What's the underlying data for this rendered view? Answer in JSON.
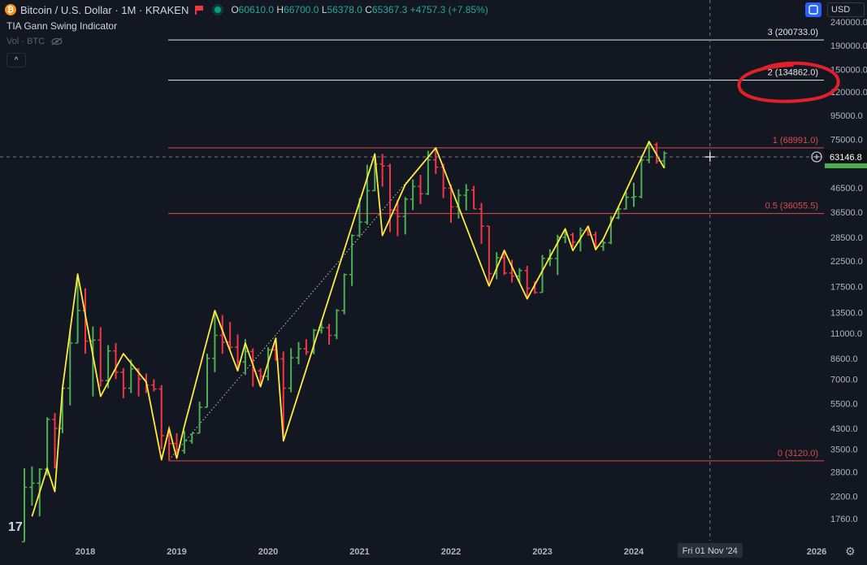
{
  "header": {
    "symbol_title": "Bitcoin / U.S. Dollar · 1M · KRAKEN",
    "open_key": "O",
    "open": "60610.0",
    "high_key": "H",
    "high": "66700.0",
    "low_key": "L",
    "low": "56378.0",
    "close_key": "C",
    "close": "65367.3",
    "change": "+4757.3 (+7.85%)"
  },
  "indicator_name": "TIA Gann Swing Indicator",
  "volume_label": "Vol · BTC",
  "currency": "USD",
  "colors": {
    "background": "#131722",
    "up": "#4caf50",
    "down": "#f23645",
    "swing": "#ffeb3b",
    "marker": "#e0202a"
  },
  "chart_data": {
    "type": "line",
    "price_axis": "log",
    "y_ticks": [
      "240000.0",
      "190000.0",
      "150000.0",
      "120000.0",
      "95000.0",
      "75000.0",
      "46500.0",
      "36500.0",
      "28500.0",
      "22500.0",
      "17500.0",
      "13500.0",
      "11000.0",
      "8600.0",
      "7000.0",
      "5500.0",
      "4300.0",
      "3500.0",
      "2800.0",
      "2200.0",
      "1760.0"
    ],
    "x_ticks": [
      "2018",
      "2019",
      "2020",
      "2021",
      "2022",
      "2023",
      "2024",
      "2026"
    ],
    "current_price_label": "63146.8",
    "crosshair_date_label": "Fri 01 Nov '24",
    "levels": [
      {
        "label": "3 (200733.0)",
        "value": 200733.0,
        "color": "#e6e6e6"
      },
      {
        "label": "2 (134862.0)",
        "value": 134862.0,
        "color": "#e6e6e6"
      },
      {
        "label": "1 (68991.0)",
        "value": 68991.0,
        "color": "#d94c4c"
      },
      {
        "label": "0.5 (36055.5)",
        "value": 36055.5,
        "color": "#d94c4c"
      },
      {
        "label": "0 (3120.0)",
        "value": 3120.0,
        "color": "#d94c4c"
      }
    ],
    "swing": {
      "name": "",
      "x": [
        "2017-06",
        "2017-08",
        "2017-09",
        "2017-10",
        "2017-12",
        "2018-03",
        "2018-06",
        "2018-09",
        "2018-11",
        "2018-12",
        "2019-01",
        "2019-02",
        "2019-06",
        "2019-09",
        "2019-10",
        "2019-12",
        "2020-02",
        "2020-03",
        "2021-03",
        "2021-04",
        "2021-07",
        "2021-11",
        "2022-06",
        "2022-08",
        "2022-11",
        "2023-04",
        "2023-05",
        "2023-07",
        "2023-08",
        "2023-09",
        "2024-03",
        "2024-05"
      ],
      "y": [
        1800,
        2900,
        2300,
        6400,
        19800,
        5900,
        9000,
        6800,
        3150,
        4300,
        3200,
        4400,
        13800,
        7600,
        10000,
        6500,
        10500,
        3800,
        65000,
        29000,
        48000,
        69000,
        17600,
        25000,
        15500,
        31000,
        25000,
        31800,
        25200,
        28000,
        73500,
        56500
      ]
    },
    "candles": [
      [
        "2017-05",
        1400,
        2900,
        1400,
        2400
      ],
      [
        "2017-06",
        2400,
        2950,
        2000,
        2500
      ],
      [
        "2017-07",
        2500,
        2900,
        1800,
        2870
      ],
      [
        "2017-08",
        2870,
        4800,
        2700,
        4700
      ],
      [
        "2017-09",
        4700,
        5000,
        2900,
        4300
      ],
      [
        "2017-10",
        4300,
        6400,
        4100,
        6400
      ],
      [
        "2017-11",
        6400,
        11400,
        5400,
        10000
      ],
      [
        "2017-12",
        10000,
        19800,
        10000,
        13800
      ],
      [
        "2018-01",
        13800,
        17200,
        9000,
        10200
      ],
      [
        "2018-02",
        10200,
        11800,
        5900,
        10300
      ],
      [
        "2018-03",
        10300,
        11700,
        6500,
        6900
      ],
      [
        "2018-04",
        6900,
        9800,
        6400,
        9250
      ],
      [
        "2018-05",
        9250,
        10000,
        7000,
        7500
      ],
      [
        "2018-06",
        7500,
        7800,
        5800,
        6400
      ],
      [
        "2018-07",
        6400,
        8500,
        6100,
        7750
      ],
      [
        "2018-08",
        7750,
        7800,
        5900,
        7000
      ],
      [
        "2018-09",
        7000,
        7400,
        6100,
        6600
      ],
      [
        "2018-10",
        6600,
        7000,
        6200,
        6350
      ],
      [
        "2018-11",
        6350,
        6600,
        3500,
        4000
      ],
      [
        "2018-12",
        4000,
        4400,
        3150,
        3700
      ],
      [
        "2019-01",
        3700,
        4100,
        3350,
        3450
      ],
      [
        "2019-02",
        3450,
        4200,
        3350,
        3800
      ],
      [
        "2019-03",
        3800,
        4100,
        3700,
        4100
      ],
      [
        "2019-04",
        4100,
        5600,
        4100,
        5300
      ],
      [
        "2019-05",
        5300,
        9000,
        5300,
        8600
      ],
      [
        "2019-06",
        8600,
        13800,
        7500,
        10800
      ],
      [
        "2019-07",
        10800,
        13200,
        9000,
        10100
      ],
      [
        "2019-08",
        10100,
        12300,
        9400,
        9600
      ],
      [
        "2019-09",
        9600,
        10900,
        7700,
        8300
      ],
      [
        "2019-10",
        8300,
        10400,
        7300,
        9200
      ],
      [
        "2019-11",
        9200,
        9500,
        6500,
        7600
      ],
      [
        "2019-12",
        7600,
        7800,
        6500,
        7200
      ],
      [
        "2020-01",
        7200,
        9600,
        6900,
        9350
      ],
      [
        "2020-02",
        9350,
        10500,
        8400,
        8550
      ],
      [
        "2020-03",
        8550,
        9200,
        3800,
        6400
      ],
      [
        "2020-04",
        6400,
        9500,
        6150,
        8650
      ],
      [
        "2020-05",
        8650,
        10100,
        8100,
        9450
      ],
      [
        "2020-06",
        9450,
        10400,
        8900,
        9150
      ],
      [
        "2020-07",
        9150,
        11500,
        8950,
        11350
      ],
      [
        "2020-08",
        11350,
        12500,
        11000,
        11650
      ],
      [
        "2020-09",
        11650,
        12100,
        9850,
        10800
      ],
      [
        "2020-10",
        10800,
        14000,
        10400,
        13800
      ],
      [
        "2020-11",
        13800,
        19900,
        13300,
        19700
      ],
      [
        "2020-12",
        19700,
        29300,
        17600,
        29000
      ],
      [
        "2021-01",
        29000,
        42000,
        28800,
        33100
      ],
      [
        "2021-02",
        33100,
        58400,
        32300,
        45200
      ],
      [
        "2021-03",
        45200,
        61800,
        45000,
        58800
      ],
      [
        "2021-04",
        58800,
        65000,
        47000,
        57700
      ],
      [
        "2021-05",
        57700,
        59000,
        30000,
        37300
      ],
      [
        "2021-06",
        37300,
        41300,
        28800,
        35000
      ],
      [
        "2021-07",
        35000,
        42400,
        29300,
        41500
      ],
      [
        "2021-08",
        41500,
        50500,
        37300,
        47100
      ],
      [
        "2021-09",
        47100,
        52900,
        39600,
        43800
      ],
      [
        "2021-10",
        43800,
        67000,
        43300,
        61300
      ],
      [
        "2021-11",
        61300,
        69000,
        53300,
        57000
      ],
      [
        "2021-12",
        57000,
        59000,
        42000,
        46300
      ],
      [
        "2022-01",
        46300,
        48000,
        32900,
        38500
      ],
      [
        "2022-02",
        38500,
        45800,
        34300,
        43200
      ],
      [
        "2022-03",
        43200,
        48200,
        37200,
        45500
      ],
      [
        "2022-04",
        45500,
        47400,
        37700,
        37700
      ],
      [
        "2022-05",
        37700,
        40000,
        26700,
        31800
      ],
      [
        "2022-06",
        31800,
        31900,
        17600,
        19900
      ],
      [
        "2022-07",
        19900,
        24600,
        18800,
        23300
      ],
      [
        "2022-08",
        23300,
        25200,
        19600,
        20000
      ],
      [
        "2022-09",
        20000,
        22800,
        18200,
        19400
      ],
      [
        "2022-10",
        19400,
        21000,
        18200,
        20500
      ],
      [
        "2022-11",
        20500,
        21500,
        15500,
        17200
      ],
      [
        "2022-12",
        17200,
        18400,
        16300,
        16500
      ],
      [
        "2023-01",
        16500,
        23900,
        16500,
        23100
      ],
      [
        "2023-02",
        23100,
        25300,
        21400,
        23100
      ],
      [
        "2023-03",
        23100,
        29200,
        19600,
        28500
      ],
      [
        "2023-04",
        28500,
        31000,
        26900,
        29200
      ],
      [
        "2023-05",
        29200,
        29800,
        25900,
        27200
      ],
      [
        "2023-06",
        27200,
        31400,
        24800,
        30500
      ],
      [
        "2023-07",
        30500,
        31800,
        28900,
        29200
      ],
      [
        "2023-08",
        29200,
        30100,
        25200,
        26000
      ],
      [
        "2023-09",
        26000,
        27500,
        24900,
        27000
      ],
      [
        "2023-10",
        27000,
        35200,
        26600,
        34500
      ],
      [
        "2023-11",
        34500,
        38400,
        34100,
        37700
      ],
      [
        "2023-12",
        37700,
        44700,
        37600,
        42300
      ],
      [
        "2024-01",
        42300,
        48900,
        38500,
        42600
      ],
      [
        "2024-02",
        42600,
        63900,
        41900,
        61200
      ],
      [
        "2024-03",
        61200,
        73800,
        59300,
        71300
      ],
      [
        "2024-04",
        71300,
        72800,
        59100,
        60600
      ],
      [
        "2024-05",
        60600,
        66700,
        56400,
        65400
      ]
    ]
  }
}
